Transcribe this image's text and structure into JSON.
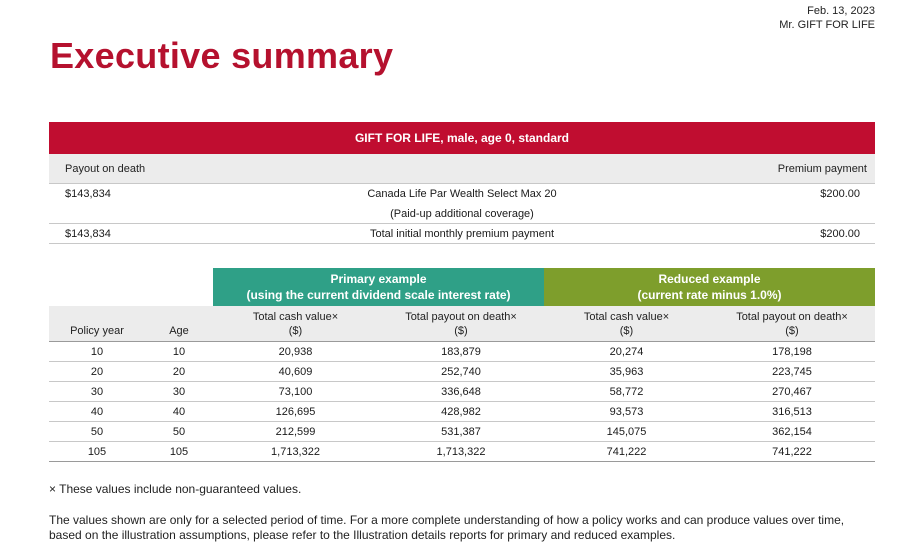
{
  "header": {
    "date": "Feb. 13, 2023",
    "client": "Mr. GIFT FOR LIFE"
  },
  "page_title": "Executive summary",
  "summary": {
    "title": "GIFT FOR LIFE, male, age 0, standard",
    "head_left": "Payout on death",
    "head_right": "Premium payment",
    "rows": [
      {
        "left": "$143,834",
        "mid": "Canada Life Par Wealth Select Max 20",
        "right": "$200.00"
      },
      {
        "left": "",
        "mid": "(Paid-up additional coverage)",
        "right": ""
      },
      {
        "left": "$143,834",
        "mid": "Total initial monthly premium payment",
        "right": "$200.00"
      }
    ]
  },
  "examples": {
    "primary": {
      "line1": "Primary example",
      "line2": "(using the current dividend scale interest rate)"
    },
    "reduced": {
      "line1": "Reduced example",
      "line2": "(current rate minus 1.0%)"
    },
    "columns": {
      "policy_year": "Policy year",
      "age": "Age",
      "cash_value": "Total cash value×",
      "payout": "Total payout on death×",
      "unit": "($)"
    },
    "rows": [
      {
        "year": "10",
        "age": "10",
        "p_cash": "20,938",
        "p_payout": "183,879",
        "r_cash": "20,274",
        "r_payout": "178,198"
      },
      {
        "year": "20",
        "age": "20",
        "p_cash": "40,609",
        "p_payout": "252,740",
        "r_cash": "35,963",
        "r_payout": "223,745"
      },
      {
        "year": "30",
        "age": "30",
        "p_cash": "73,100",
        "p_payout": "336,648",
        "r_cash": "58,772",
        "r_payout": "270,467"
      },
      {
        "year": "40",
        "age": "40",
        "p_cash": "126,695",
        "p_payout": "428,982",
        "r_cash": "93,573",
        "r_payout": "316,513"
      },
      {
        "year": "50",
        "age": "50",
        "p_cash": "212,599",
        "p_payout": "531,387",
        "r_cash": "145,075",
        "r_payout": "362,154"
      },
      {
        "year": "105",
        "age": "105",
        "p_cash": "1,713,322",
        "p_payout": "1,713,322",
        "r_cash": "741,222",
        "r_payout": "741,222"
      }
    ]
  },
  "footnote": "× These values include non-guaranteed values.",
  "paragraph": "The values shown are only for a selected period of time. For a more complete understanding of how a policy works and can produce values over time, based on the illustration assumptions, please refer to the Illustration details reports for primary and reduced examples."
}
